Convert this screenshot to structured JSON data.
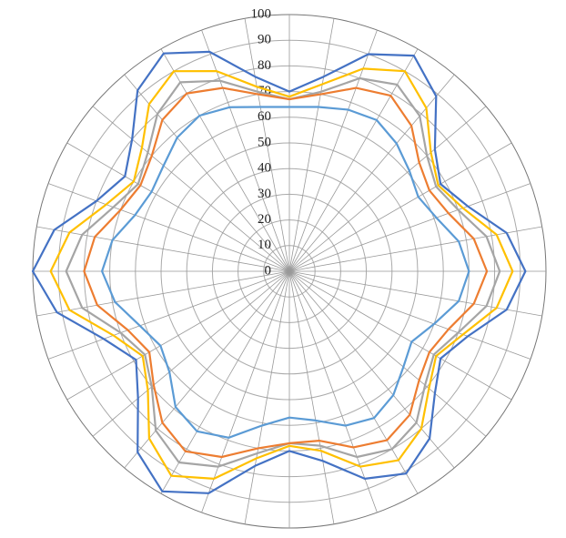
{
  "chart_data": {
    "type": "radar",
    "categories": [
      null,
      null,
      null,
      null,
      null,
      null,
      null,
      null,
      null,
      null,
      null,
      null,
      null,
      null,
      null,
      null,
      null,
      null,
      null,
      null,
      null,
      null,
      null,
      null,
      null,
      null,
      null,
      null,
      null,
      null,
      null,
      null,
      null,
      null,
      null,
      null
    ],
    "rlim": [
      0,
      100
    ],
    "rticks": [
      0,
      10,
      20,
      30,
      40,
      50,
      60,
      70,
      80,
      90,
      100
    ],
    "grid": true,
    "series": [
      {
        "color": "#4472c4",
        "values": [
          70,
          77,
          90,
          97,
          89,
          74,
          68,
          74,
          86,
          92,
          86,
          74,
          68,
          74,
          85,
          91,
          86,
          75,
          70,
          77,
          92,
          99,
          92,
          77,
          69,
          77,
          92,
          100,
          93,
          80,
          74,
          80,
          92,
          98,
          91,
          77
        ]
      },
      {
        "color": "#ffc000",
        "values": [
          68,
          74,
          84,
          90,
          83,
          72,
          67,
          72,
          82,
          87,
          82,
          72,
          66,
          71,
          80,
          85,
          81,
          71,
          68,
          74,
          86,
          92,
          85,
          72,
          66,
          73,
          87,
          93,
          87,
          76,
          70,
          75,
          85,
          90,
          83,
          73
        ]
      },
      {
        "color": "#a5a5a5",
        "values": [
          67,
          71,
          80,
          84,
          79,
          70,
          66,
          70,
          78,
          82,
          78,
          70,
          65,
          69,
          77,
          80,
          77,
          69,
          67,
          72,
          81,
          86,
          81,
          70,
          65,
          70,
          82,
          87,
          82,
          73,
          68,
          72,
          80,
          85,
          79,
          71
        ]
      },
      {
        "color": "#ed7d31",
        "values": [
          67,
          70,
          76,
          79,
          74,
          66,
          63,
          66,
          73,
          77,
          73,
          66,
          63,
          66,
          73,
          76,
          73,
          67,
          67,
          70,
          77,
          81,
          77,
          69,
          63,
          67,
          76,
          80,
          77,
          70,
          67,
          70,
          77,
          80,
          76,
          70
        ]
      },
      {
        "color": "#5b9bd5",
        "values": [
          64,
          65,
          67,
          68,
          65,
          61,
          58,
          61,
          67,
          70,
          67,
          60,
          55,
          58,
          63,
          66,
          64,
          59,
          57,
          61,
          69,
          72,
          69,
          61,
          58,
          62,
          69,
          73,
          70,
          64,
          62,
          64,
          68,
          70,
          68,
          65
        ]
      }
    ]
  }
}
